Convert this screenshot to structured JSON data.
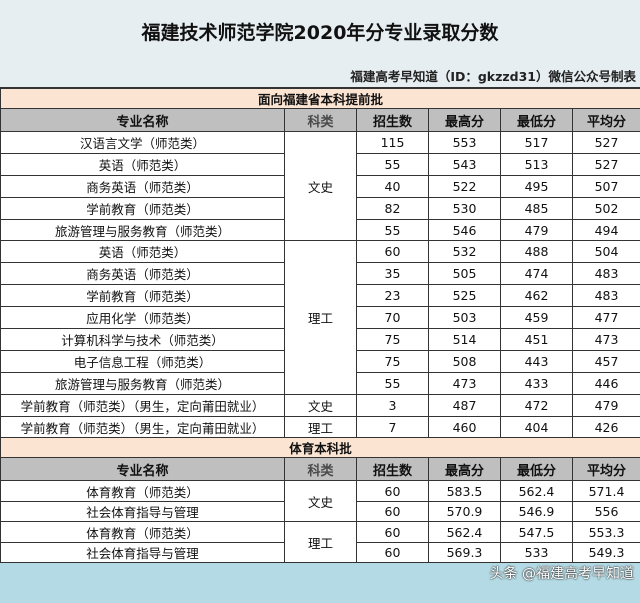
{
  "title": "福建技术师范学院2020年分专业录取分数",
  "subtitle": "福建高考早知道（ID：gkzzd31）微信公众号制表",
  "columns": [
    "专业名称",
    "科类",
    "招生数",
    "最高分",
    "最低分",
    "平均分"
  ],
  "sections": [
    {
      "name": "面向福建省本科提前批",
      "rows": [
        {
          "major": "汉语言文学（师范类）",
          "category": "文史",
          "count": "115",
          "max": "553",
          "min": "517",
          "avg": "527"
        },
        {
          "major": "英语（师范类）",
          "category": "文史",
          "count": "55",
          "max": "543",
          "min": "513",
          "avg": "527"
        },
        {
          "major": "商务英语（师范类）",
          "category": "文史",
          "count": "40",
          "max": "522",
          "min": "495",
          "avg": "507"
        },
        {
          "major": "学前教育（师范类）",
          "category": "文史",
          "count": "82",
          "max": "530",
          "min": "485",
          "avg": "502"
        },
        {
          "major": "旅游管理与服务教育（师范类）",
          "category": "文史",
          "count": "55",
          "max": "546",
          "min": "479",
          "avg": "494"
        },
        {
          "major": "英语（师范类）",
          "category": "理工",
          "count": "60",
          "max": "532",
          "min": "488",
          "avg": "504"
        },
        {
          "major": "商务英语（师范类）",
          "category": "理工",
          "count": "35",
          "max": "505",
          "min": "474",
          "avg": "483"
        },
        {
          "major": "学前教育（师范类）",
          "category": "理工",
          "count": "23",
          "max": "525",
          "min": "462",
          "avg": "483"
        },
        {
          "major": "应用化学（师范类）",
          "category": "理工",
          "count": "70",
          "max": "503",
          "min": "459",
          "avg": "477"
        },
        {
          "major": "计算机科学与技术（师范类）",
          "category": "理工",
          "count": "75",
          "max": "514",
          "min": "451",
          "avg": "473"
        },
        {
          "major": "电子信息工程（师范类）",
          "category": "理工",
          "count": "75",
          "max": "508",
          "min": "443",
          "avg": "457"
        },
        {
          "major": "旅游管理与服务教育（师范类）",
          "category": "理工",
          "count": "55",
          "max": "473",
          "min": "433",
          "avg": "446"
        },
        {
          "major": "学前教育（师范类）（男生，定向莆田就业）",
          "category": "文史",
          "count": "3",
          "max": "487",
          "min": "472",
          "avg": "479"
        },
        {
          "major": "学前教育（师范类）（男生，定向莆田就业）",
          "category": "理工",
          "count": "7",
          "max": "460",
          "min": "404",
          "avg": "426"
        }
      ]
    },
    {
      "name": "体育本科批",
      "rows": [
        {
          "major": "体育教育（师范类）",
          "category": "文史",
          "count": "60",
          "max": "583.5",
          "min": "562.4",
          "avg": "571.4"
        },
        {
          "major": "社会体育指导与管理",
          "category": "文史",
          "count": "60",
          "max": "570.9",
          "min": "546.9",
          "avg": "556"
        },
        {
          "major": "体育教育（师范类）",
          "category": "理工",
          "count": "60",
          "max": "562.4",
          "min": "547.5",
          "avg": "553.3"
        },
        {
          "major": "社会体育指导与管理",
          "category": "理工",
          "count": "60",
          "max": "569.3",
          "min": "533",
          "avg": "549.3"
        }
      ]
    }
  ],
  "watermark": "头条 @福建高考早知道"
}
